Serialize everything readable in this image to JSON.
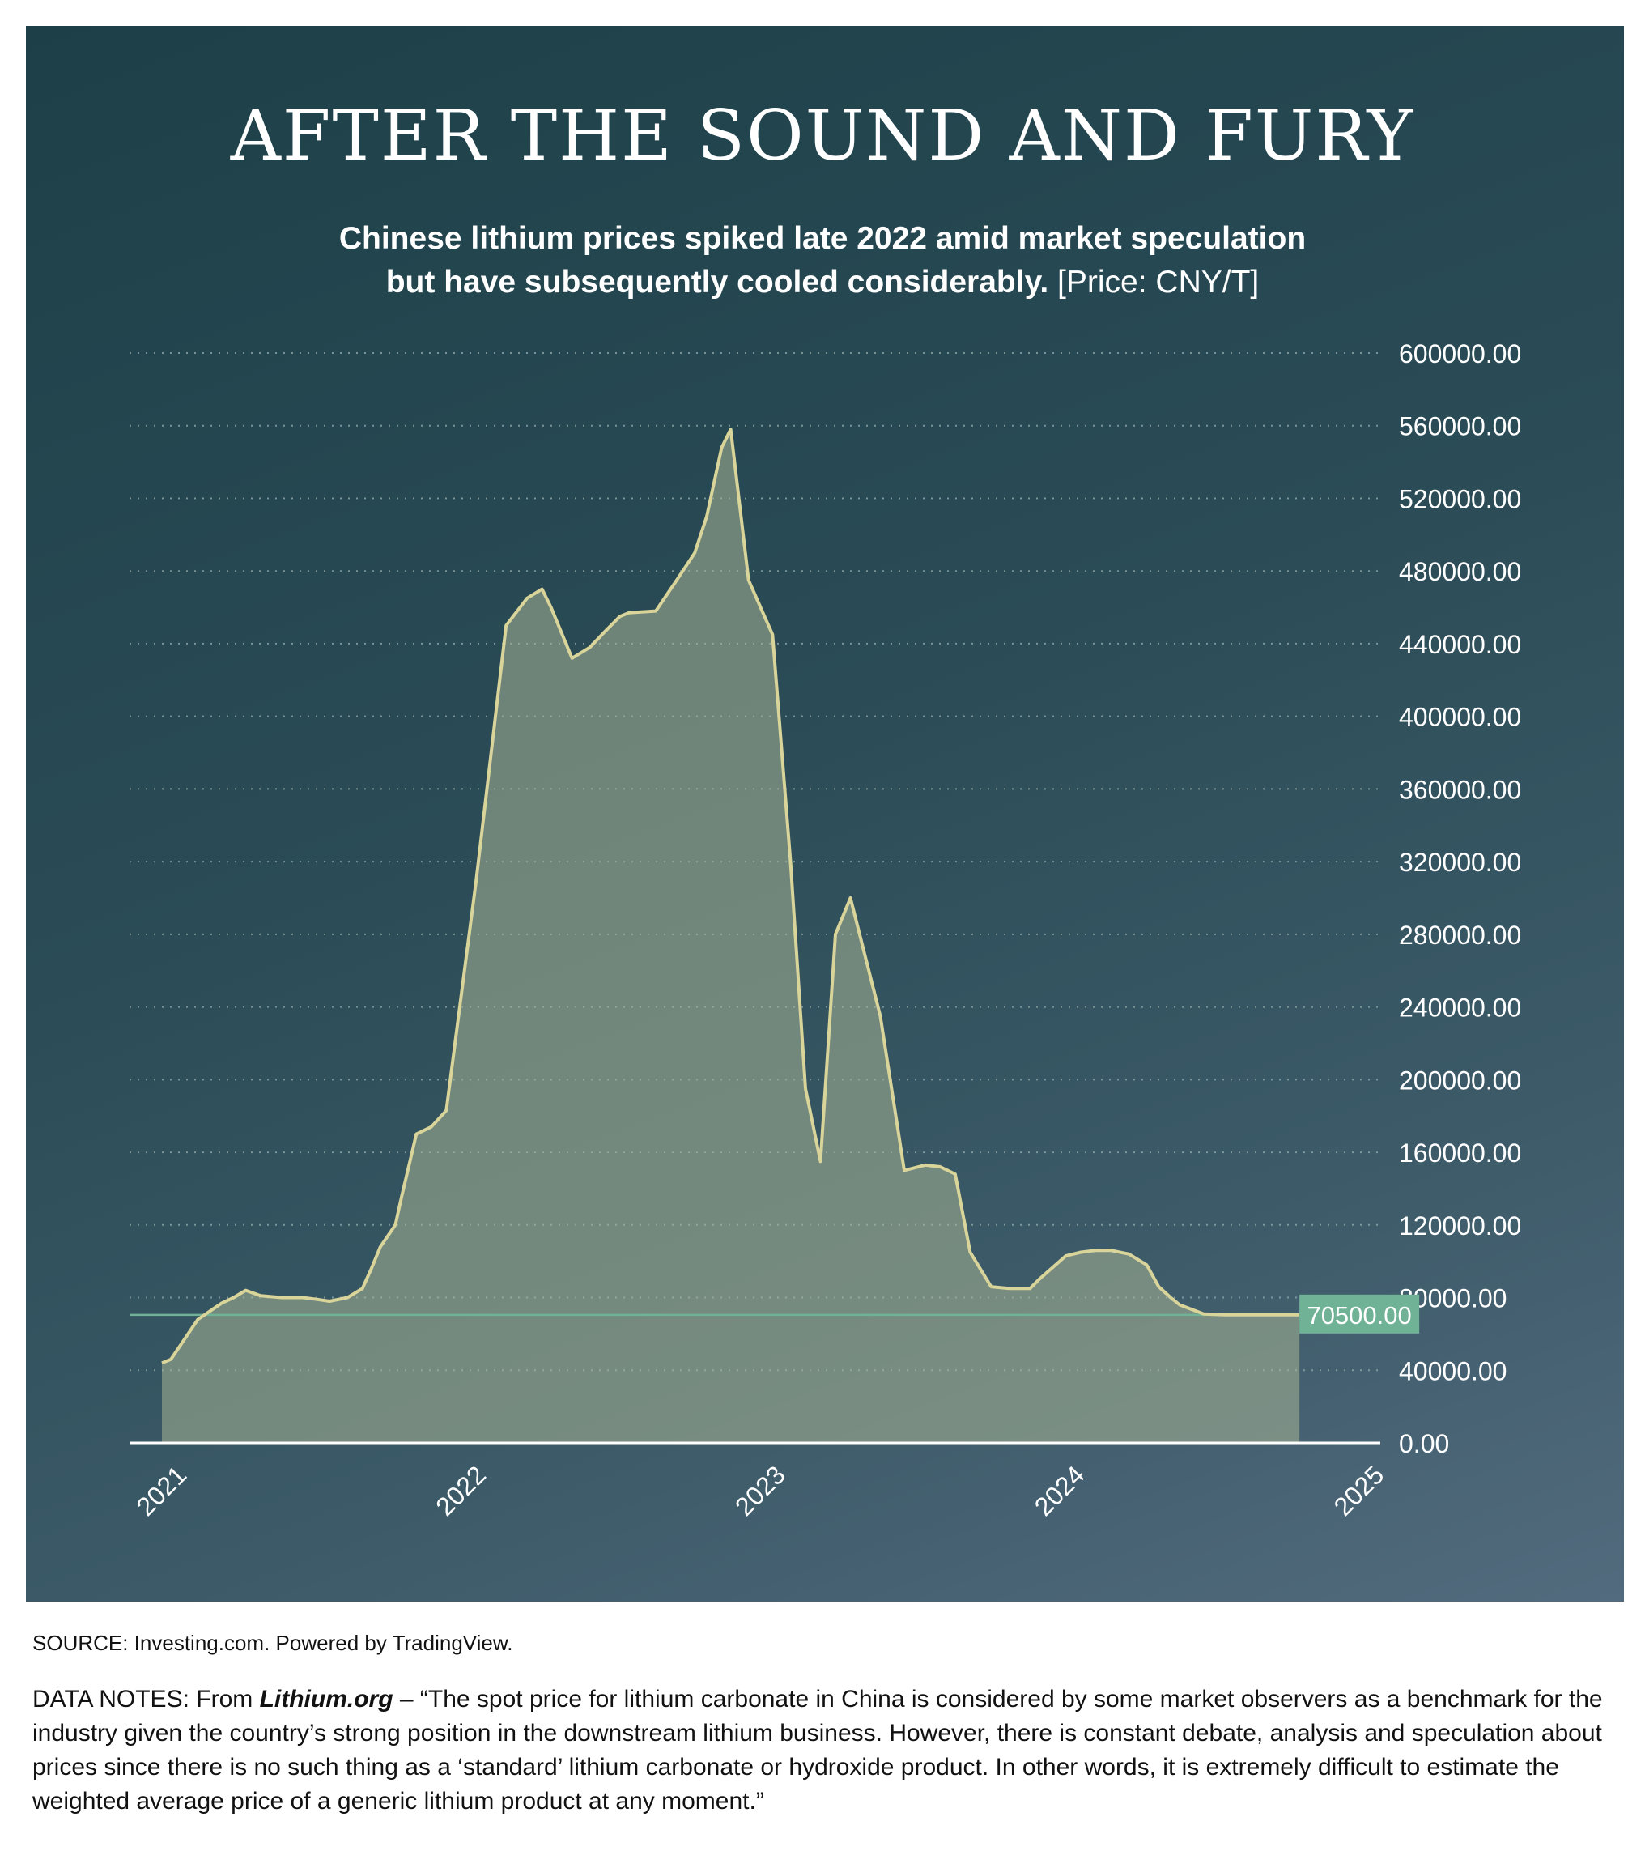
{
  "title": "AFTER THE SOUND AND FURY",
  "subtitle_line1": "Chinese lithium prices spiked late 2022 amid market speculation",
  "subtitle_line2": "but have subsequently cooled considerably.",
  "subtitle_unit": "[Price: CNY/T]",
  "source": "SOURCE: Investing.com. Powered by TradingView.",
  "notes": {
    "prefix": "DATA NOTES: From ",
    "org": "Lithium.org",
    "text": " – “The spot price for lithium carbonate in China is considered by some market observers as a benchmark for the industry given the country’s strong position in the downstream lithium business. However, there is constant debate, analysis and speculation about prices since there is no such thing as a ‘standard’ lithium carbonate or hydroxide product. In other words, it is extremely difficult to estimate the weighted average price of a generic lithium product at any moment.”"
  },
  "colors": {
    "line": "#d9d49a",
    "area": "#a8b596",
    "current": "#6fb295",
    "grid": "#8fa7a8"
  },
  "chart_data": {
    "type": "area",
    "title": "AFTER THE SOUND AND FURY",
    "ylim": [
      0,
      600000
    ],
    "yticks": [
      "0.00",
      "40000.00",
      "80000.00",
      "120000.00",
      "160000.00",
      "200000.00",
      "240000.00",
      "280000.00",
      "320000.00",
      "360000.00",
      "400000.00",
      "440000.00",
      "480000.00",
      "520000.00",
      "560000.00",
      "600000.00"
    ],
    "xticks": [
      "2021",
      "2022",
      "2023",
      "2024",
      "2025"
    ],
    "xlim": [
      2021.0,
      2025.3
    ],
    "grid": true,
    "current_value_label": "70500.00",
    "current_value": 70500,
    "series": [
      {
        "x": [
          2021.0,
          2021.03,
          2021.12,
          2021.2,
          2021.24,
          2021.28,
          2021.33,
          2021.4,
          2021.47,
          2021.52,
          2021.56,
          2021.62,
          2021.67,
          2021.7,
          2021.73,
          2021.78,
          2021.8,
          2021.85,
          2021.9,
          2021.95,
          2022.05,
          2022.15,
          2022.22,
          2022.27,
          2022.3,
          2022.37,
          2022.43,
          2022.47,
          2022.53,
          2022.56,
          2022.65,
          2022.72,
          2022.78,
          2022.82,
          2022.87,
          2022.9,
          2022.96,
          2023.04,
          2023.1,
          2023.15,
          2023.2,
          2023.25,
          2023.3,
          2023.4,
          2023.48,
          2023.55,
          2023.6,
          2023.65,
          2023.7,
          2023.77,
          2023.83,
          2023.9,
          2023.93,
          2024.02,
          2024.07,
          2024.12,
          2024.17,
          2024.23,
          2024.29,
          2024.33,
          2024.37,
          2024.4,
          2024.48,
          2024.55,
          2024.6,
          2024.66,
          2024.73,
          2024.8
        ],
        "y": [
          44000,
          46000,
          68000,
          77000,
          80000,
          84000,
          81000,
          80000,
          80000,
          79000,
          78000,
          80000,
          85000,
          96000,
          108000,
          120000,
          135000,
          170000,
          174000,
          183000,
          310000,
          450000,
          465000,
          470000,
          460000,
          432000,
          438000,
          445000,
          455000,
          457000,
          458000,
          475000,
          490000,
          510000,
          548000,
          558000,
          475000,
          445000,
          320000,
          195000,
          155000,
          280000,
          300000,
          235000,
          150000,
          153000,
          152000,
          148000,
          105000,
          86000,
          85000,
          85000,
          90000,
          103000,
          105000,
          106000,
          106000,
          104000,
          98000,
          86000,
          80000,
          76000,
          71000,
          70500,
          70500,
          70500,
          70500,
          70500
        ]
      }
    ]
  }
}
